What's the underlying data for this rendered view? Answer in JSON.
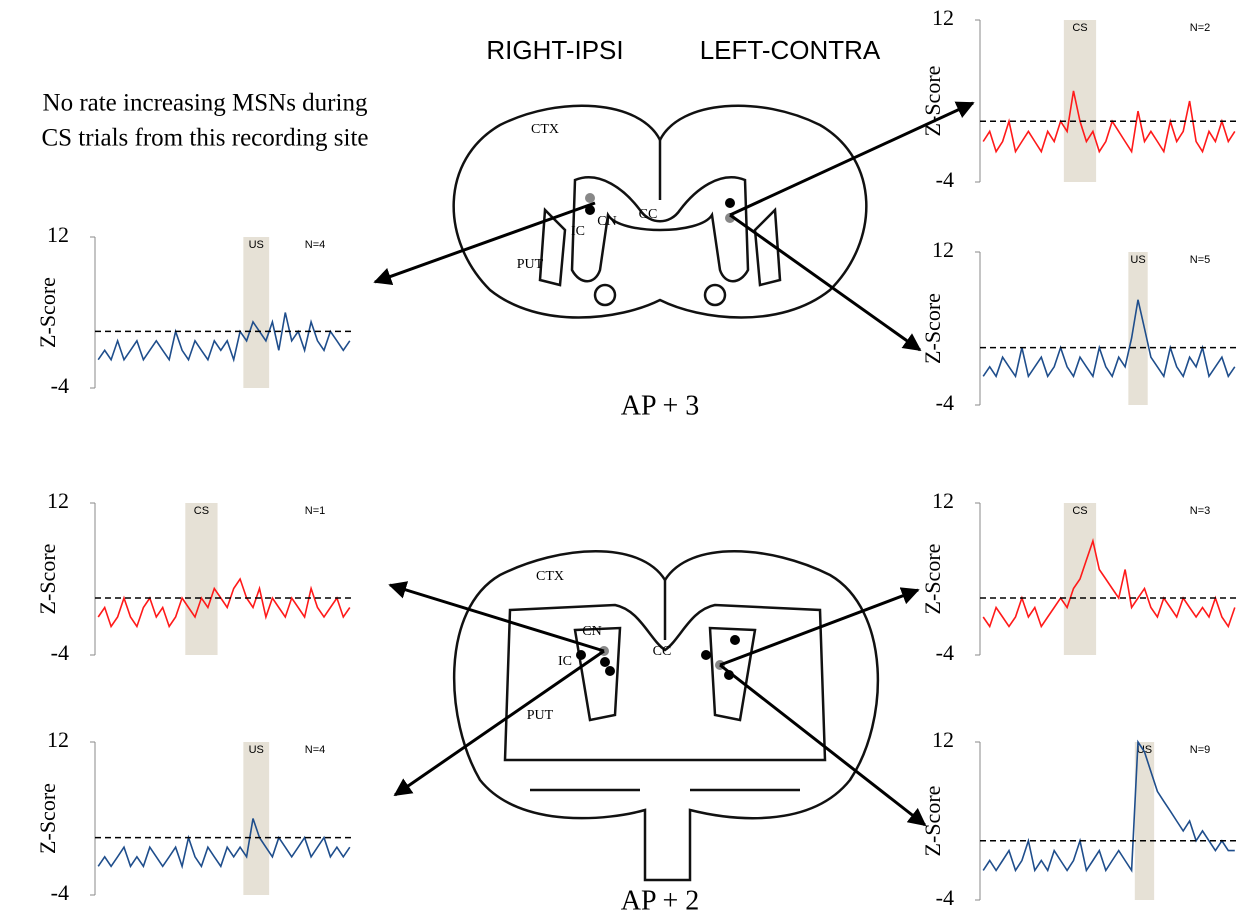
{
  "header": {
    "left": "RIGHT-IPSI",
    "right": "LEFT-CONTRA"
  },
  "note": [
    "No rate increasing MSNs during",
    "CS trials from this recording site"
  ],
  "sections": [
    {
      "label": "AP + 3",
      "regions": [
        "CTX",
        "CC",
        "CN",
        "IC",
        "PUT"
      ]
    },
    {
      "label": "AP + 2",
      "regions": [
        "CTX",
        "CC",
        "CN",
        "IC",
        "PUT"
      ]
    }
  ],
  "chart_data": [
    {
      "type": "line",
      "y_label": "Z-Score",
      "color": "#ff1a1a",
      "ylim": [
        -4,
        12
      ],
      "yticks": [
        -4,
        12
      ],
      "threshold": 2,
      "window": {
        "label": "CS",
        "range": [
          13,
          17
        ]
      },
      "annotation": "N=2",
      "values": [
        0,
        1,
        -1,
        0,
        2,
        -1,
        0,
        1,
        0,
        -1,
        1,
        0,
        2,
        1,
        5,
        2,
        0,
        1,
        -1,
        0,
        2,
        1,
        0,
        -1,
        3,
        0,
        1,
        0,
        -1,
        2,
        0,
        1,
        4,
        0,
        -1,
        1,
        0,
        2,
        0,
        1
      ]
    },
    {
      "type": "line",
      "y_label": "Z-Score",
      "color": "#1f4e8c",
      "ylim": [
        -4,
        12
      ],
      "yticks": [
        -4,
        12
      ],
      "threshold": 2,
      "window": {
        "label": "US",
        "range": [
          23,
          25
        ]
      },
      "annotation": "N=5",
      "values": [
        -1,
        0,
        -1,
        1,
        0,
        -1,
        2,
        -1,
        0,
        1,
        -1,
        0,
        2,
        0,
        -1,
        1,
        0,
        -1,
        2,
        0,
        -1,
        1,
        0,
        3,
        7,
        4,
        1,
        0,
        -1,
        2,
        0,
        -1,
        1,
        0,
        2,
        -1,
        0,
        1,
        -1,
        0
      ]
    },
    {
      "type": "line",
      "y_label": "Z-Score",
      "color": "#1f4e8c",
      "ylim": [
        -4,
        12
      ],
      "yticks": [
        -4,
        12
      ],
      "threshold": 2,
      "window": {
        "label": "US",
        "range": [
          23,
          26
        ]
      },
      "annotation": "N=4",
      "values": [
        -1,
        0,
        -1,
        1,
        -1,
        0,
        1,
        -1,
        0,
        1,
        0,
        -1,
        2,
        0,
        -1,
        1,
        0,
        -1,
        1,
        0,
        1,
        -1,
        2,
        1,
        3,
        2,
        1,
        3,
        0,
        4,
        1,
        2,
        0,
        3,
        1,
        0,
        2,
        1,
        0,
        1
      ]
    },
    {
      "type": "line",
      "y_label": "Z-Score",
      "color": "#ff1a1a",
      "ylim": [
        -4,
        12
      ],
      "yticks": [
        -4,
        12
      ],
      "threshold": 2,
      "window": {
        "label": "CS",
        "range": [
          14,
          18
        ]
      },
      "annotation": "N=1",
      "values": [
        0,
        1,
        -1,
        0,
        2,
        0,
        -1,
        1,
        2,
        0,
        1,
        -1,
        0,
        2,
        1,
        0,
        2,
        1,
        3,
        2,
        1,
        3,
        4,
        2,
        1,
        3,
        0,
        2,
        1,
        0,
        2,
        1,
        0,
        3,
        1,
        0,
        1,
        2,
        0,
        1
      ]
    },
    {
      "type": "line",
      "y_label": "Z-Score",
      "color": "#1f4e8c",
      "ylim": [
        -4,
        12
      ],
      "yticks": [
        -4,
        12
      ],
      "threshold": 2,
      "window": {
        "label": "US",
        "range": [
          23,
          26
        ]
      },
      "annotation": "N=4",
      "values": [
        -1,
        0,
        -1,
        0,
        1,
        -1,
        0,
        -1,
        1,
        0,
        -1,
        0,
        1,
        -1,
        2,
        0,
        -1,
        1,
        0,
        -1,
        1,
        0,
        1,
        0,
        4,
        2,
        1,
        0,
        2,
        1,
        0,
        1,
        2,
        0,
        1,
        2,
        0,
        1,
        0,
        1
      ]
    },
    {
      "type": "line",
      "y_label": "Z-Score",
      "color": "#ff1a1a",
      "ylim": [
        -4,
        12
      ],
      "yticks": [
        -4,
        12
      ],
      "threshold": 2,
      "window": {
        "label": "CS",
        "range": [
          13,
          17
        ]
      },
      "annotation": "N=3",
      "values": [
        0,
        -1,
        1,
        0,
        -1,
        0,
        2,
        0,
        1,
        -1,
        0,
        1,
        2,
        1,
        3,
        4,
        6,
        8,
        5,
        4,
        3,
        2,
        5,
        1,
        2,
        3,
        1,
        0,
        2,
        1,
        0,
        2,
        1,
        0,
        1,
        0,
        2,
        0,
        -1,
        1
      ]
    },
    {
      "type": "line",
      "y_label": "Z-Score",
      "color": "#1f4e8c",
      "ylim": [
        -4,
        12
      ],
      "yticks": [
        -4,
        12
      ],
      "threshold": 2,
      "window": {
        "label": "US",
        "range": [
          24,
          26
        ]
      },
      "annotation": "N=9",
      "values": [
        -1,
        0,
        -1,
        0,
        1,
        -1,
        0,
        2,
        -1,
        0,
        -1,
        1,
        0,
        -1,
        0,
        2,
        -1,
        0,
        1,
        -1,
        0,
        1,
        0,
        -1,
        12,
        11,
        9,
        7,
        6,
        5,
        4,
        3,
        4,
        2,
        3,
        2,
        1,
        2,
        1,
        1
      ]
    }
  ]
}
